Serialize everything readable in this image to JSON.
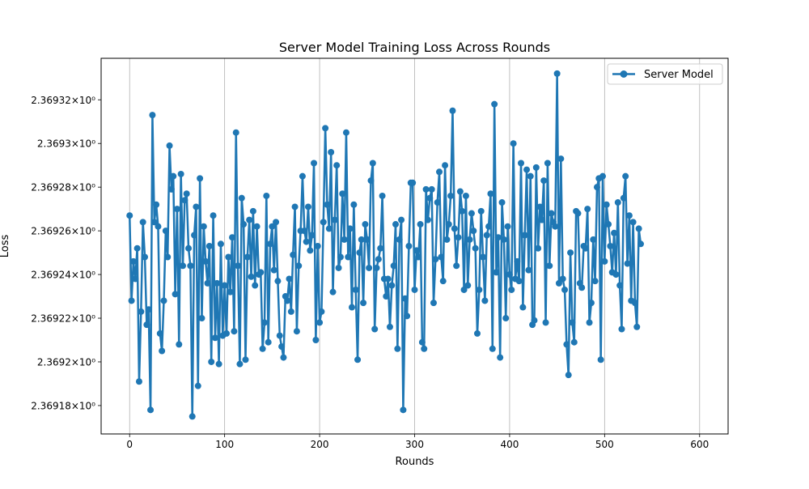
{
  "chart_data": {
    "type": "line",
    "title": "Server Model Training Loss Across Rounds",
    "xlabel": "Rounds",
    "ylabel": "Loss",
    "xlim": [
      -30,
      630
    ],
    "ylim": [
      2.369167,
      2.369339
    ],
    "x_ticks": [
      0,
      100,
      200,
      300,
      400,
      500,
      600
    ],
    "x_tick_labels": [
      "0",
      "100",
      "200",
      "300",
      "400",
      "500",
      "600"
    ],
    "y_ticks": [
      2.36918,
      2.3692,
      2.36922,
      2.36924,
      2.36926,
      2.36928,
      2.3693,
      2.36932
    ],
    "y_tick_labels": [
      "2.36918",
      "2.3692",
      "2.36922",
      "2.36924",
      "2.36926",
      "2.36928",
      "2.3693",
      "2.36932"
    ],
    "y_tick_suffix": "×10⁰",
    "grid": "vertical",
    "legend": {
      "position": "top-right",
      "entries": [
        "Server Model"
      ]
    },
    "series": [
      {
        "name": "Server Model",
        "color": "#1f77b4",
        "marker": "circle",
        "x_start": 0,
        "x_step": 2,
        "values": [
          2.369267,
          2.369228,
          2.369246,
          2.369238,
          2.369252,
          2.369191,
          2.369223,
          2.369264,
          2.369248,
          2.369217,
          2.369224,
          2.369178,
          2.369313,
          2.369264,
          2.369272,
          2.369262,
          2.369213,
          2.369205,
          2.369228,
          2.36926,
          2.369248,
          2.369299,
          2.369279,
          2.369285,
          2.369231,
          2.36927,
          2.369208,
          2.369286,
          2.369244,
          2.369274,
          2.369277,
          2.369252,
          2.369244,
          2.369175,
          2.369258,
          2.369271,
          2.369189,
          2.369284,
          2.36922,
          2.369262,
          2.369246,
          2.369236,
          2.369253,
          2.3692,
          2.369267,
          2.369211,
          2.369236,
          2.369199,
          2.369254,
          2.369212,
          2.369235,
          2.369213,
          2.369248,
          2.369232,
          2.369257,
          2.369214,
          2.369305,
          2.369244,
          2.369199,
          2.369275,
          2.369263,
          2.369201,
          2.369248,
          2.369265,
          2.369239,
          2.369269,
          2.369235,
          2.369262,
          2.36924,
          2.369241,
          2.369206,
          2.369218,
          2.369276,
          2.369209,
          2.369254,
          2.369262,
          2.369242,
          2.369264,
          2.369237,
          2.369212,
          2.369207,
          2.369202,
          2.36923,
          2.369228,
          2.369238,
          2.369223,
          2.369249,
          2.369271,
          2.369214,
          2.369244,
          2.36926,
          2.369285,
          2.36926,
          2.369255,
          2.369271,
          2.369251,
          2.369258,
          2.369291,
          2.36921,
          2.369253,
          2.369218,
          2.369223,
          2.369264,
          2.369307,
          2.369272,
          2.369261,
          2.369296,
          2.369232,
          2.369265,
          2.36929,
          2.369243,
          2.369248,
          2.369277,
          2.369256,
          2.369305,
          2.369248,
          2.369261,
          2.369225,
          2.369272,
          2.369233,
          2.369201,
          2.36925,
          2.369256,
          2.369227,
          2.369263,
          2.369256,
          2.369243,
          2.369283,
          2.369291,
          2.369215,
          2.369243,
          2.369247,
          2.369252,
          2.369276,
          2.369238,
          2.36923,
          2.369238,
          2.369216,
          2.369235,
          2.369244,
          2.369263,
          2.369206,
          2.369256,
          2.369265,
          2.369178,
          2.369229,
          2.369221,
          2.369253,
          2.369282,
          2.369282,
          2.369233,
          2.369251,
          2.369248,
          2.369263,
          2.369209,
          2.369206,
          2.369279,
          2.369265,
          2.369275,
          2.369279,
          2.369227,
          2.369247,
          2.369273,
          2.369287,
          2.369248,
          2.369237,
          2.36929,
          2.369256,
          2.369263,
          2.369276,
          2.369315,
          2.369261,
          2.369244,
          2.369257,
          2.369278,
          2.369269,
          2.369233,
          2.369276,
          2.369235,
          2.369256,
          2.369268,
          2.36926,
          2.369252,
          2.369213,
          2.369233,
          2.369269,
          2.369248,
          2.369228,
          2.369258,
          2.369262,
          2.369277,
          2.369206,
          2.369318,
          2.369241,
          2.369257,
          2.369202,
          2.369273,
          2.369256,
          2.36922,
          2.369262,
          2.36924,
          2.369233,
          2.3693,
          2.369238,
          2.369246,
          2.369237,
          2.369291,
          2.369225,
          2.369258,
          2.369288,
          2.369242,
          2.369285,
          2.369217,
          2.369219,
          2.369289,
          2.369252,
          2.369271,
          2.369265,
          2.369283,
          2.369218,
          2.369291,
          2.369244,
          2.369268,
          2.369264,
          2.369262,
          2.369332,
          2.369236,
          2.369293,
          2.369238,
          2.369233,
          2.369208,
          2.369194,
          2.36925,
          2.369218,
          2.369209,
          2.369269,
          2.369268,
          2.369236,
          2.369234,
          2.369253,
          2.369252,
          2.36927,
          2.369218,
          2.369227,
          2.369256,
          2.369237,
          2.36928,
          2.369284,
          2.369201,
          2.369285,
          2.369246,
          2.369272,
          2.369263,
          2.369253,
          2.369241,
          2.369259,
          2.36924,
          2.369273,
          2.369235,
          2.369215,
          2.369275,
          2.369285,
          2.369245,
          2.369267,
          2.369228,
          2.369264,
          2.369227,
          2.369216,
          2.369261,
          2.369254
        ]
      }
    ]
  }
}
